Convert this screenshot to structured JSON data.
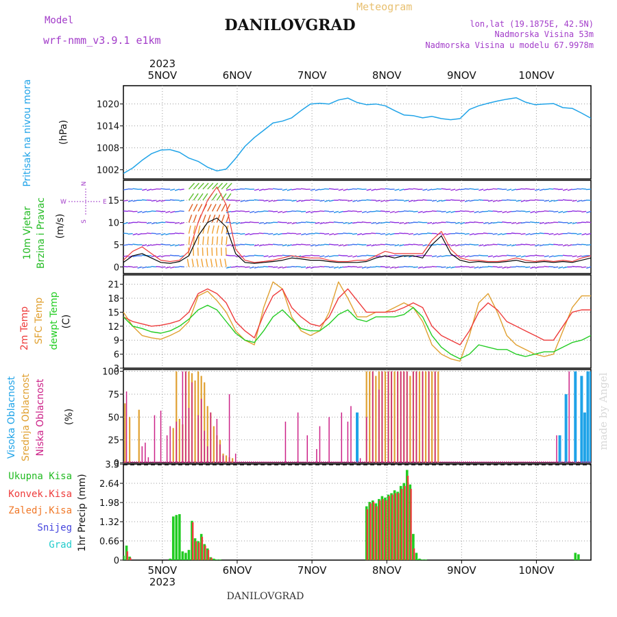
{
  "header": {
    "model_label": "Model",
    "model_name": "wrf-nmm_v3.9.1 e1km",
    "station_title": "DANILOVGRAD",
    "meteogram_label": "Meteogram",
    "lonlat": "lon,lat (19.1875E, 42.5N)",
    "elevation": "Nadmorska Visina 53m",
    "model_elevation": "Nadmorska Visina u modelu 67.9978m"
  },
  "footer": {
    "station": "DANILOVGRAD",
    "credit": "made by Angel"
  },
  "wind_compass": {
    "n": "N",
    "s": "S",
    "e": "E",
    "w": "W"
  },
  "colors": {
    "pressure": "#1fa3e8",
    "wind_speed_label": "#22bb22",
    "temp2m": "#ee3b3b",
    "sfc_temp": "#e0a030",
    "dewpoint": "#22cc22",
    "cloud_high": "#1fa3e8",
    "cloud_mid": "#e0a030",
    "cloud_low": "#cc2288",
    "precip_total": "#22cc22",
    "precip_conv": "#ee3b3b",
    "precip_frozen": "#f07828",
    "snow": "#4444dd",
    "hail": "#22cccc",
    "title_purple": "#a23cc9",
    "meteogram_gold": "#e8c070"
  },
  "chart_data": [
    {
      "type": "line",
      "panel": "pressure",
      "ylabel_lines": [
        "Pritisak na nivou mora",
        "(hPa)"
      ],
      "ylim": [
        999.5,
        1025.0
      ],
      "yticks": [
        "1002",
        "1008",
        "1014",
        "1020"
      ],
      "x_ticks": [
        "5NOV",
        "6NOV",
        "7NOV",
        "8NOV",
        "9NOV",
        "10NOV"
      ],
      "x_year": "2023",
      "x_hours": [
        0,
        3,
        6,
        9,
        12,
        15,
        18,
        21,
        24,
        27,
        30,
        33,
        36,
        39,
        42,
        45,
        48,
        51,
        54,
        57,
        60,
        63,
        66,
        69,
        72,
        75,
        78,
        81,
        84,
        87,
        90,
        93,
        96,
        99,
        102,
        105,
        108,
        111,
        114,
        117,
        120,
        123,
        126,
        129,
        132,
        135,
        138,
        141,
        144,
        147,
        150
      ],
      "series": [
        {
          "values": [
            1001.0,
            1002.5,
            1004.6,
            1006.4,
            1007.4,
            1007.5,
            1006.8,
            1005.2,
            1004.3,
            1002.7,
            1001.7,
            1002.2,
            1005.1,
            1008.4,
            1010.8,
            1012.8,
            1014.8,
            1015.3,
            1016.2,
            1018.2,
            1020.0,
            1020.2,
            1020.0,
            1021.1,
            1021.6,
            1020.4,
            1019.8,
            1020.0,
            1019.5,
            1018.2,
            1017.0,
            1016.8,
            1016.2,
            1016.6,
            1016.0,
            1015.7,
            1016.0,
            1018.5,
            1019.5,
            1020.2,
            1020.8,
            1021.3,
            1021.7,
            1020.5,
            1019.8,
            1020.0,
            1020.1,
            1019.0,
            1018.8,
            1017.5,
            1016.1
          ]
        }
      ]
    },
    {
      "type": "line",
      "panel": "wind",
      "ylabel_lines": [
        "10m Vjetar",
        "Brzina i Pravac",
        "(m/s)"
      ],
      "ylim": [
        -1.5,
        19.5
      ],
      "yticks": [
        "0",
        "5",
        "10",
        "15"
      ],
      "x_hours": [
        0,
        3,
        6,
        9,
        12,
        15,
        18,
        21,
        24,
        27,
        30,
        33,
        36,
        39,
        42,
        45,
        48,
        51,
        54,
        57,
        60,
        63,
        66,
        69,
        72,
        75,
        78,
        81,
        84,
        87,
        90,
        93,
        96,
        99,
        102,
        105,
        108,
        111,
        114,
        117,
        120,
        123,
        126,
        129,
        132,
        135,
        138,
        141,
        144,
        147,
        150
      ],
      "series": [
        {
          "name": "speed",
          "values": [
            1.0,
            2.5,
            3.0,
            2.0,
            1.0,
            0.8,
            1.2,
            2.5,
            7.0,
            10.0,
            11.0,
            9.0,
            3.0,
            1.0,
            0.8,
            1.0,
            1.2,
            1.5,
            2.0,
            1.8,
            1.5,
            1.5,
            1.2,
            1.0,
            1.0,
            1.0,
            1.2,
            2.0,
            2.5,
            2.0,
            2.5,
            2.5,
            2.0,
            5.0,
            7.0,
            3.0,
            1.5,
            1.0,
            1.2,
            1.0,
            1.0,
            1.2,
            1.5,
            1.0,
            1.0,
            1.2,
            1.0,
            1.2,
            1.0,
            1.5,
            2.0
          ]
        },
        {
          "name": "gust",
          "values": [
            1.5,
            3.5,
            4.5,
            3.0,
            1.5,
            1.2,
            1.5,
            3.5,
            10.0,
            15.0,
            18.0,
            14.0,
            4.0,
            1.5,
            1.0,
            1.2,
            1.5,
            2.0,
            2.5,
            2.2,
            2.0,
            2.0,
            1.5,
            1.2,
            1.2,
            1.5,
            1.5,
            2.5,
            3.5,
            3.0,
            3.0,
            3.0,
            3.0,
            6.0,
            8.0,
            4.0,
            2.0,
            1.5,
            1.5,
            1.2,
            1.2,
            1.5,
            2.0,
            1.5,
            1.2,
            1.5,
            1.2,
            1.5,
            1.2,
            2.0,
            2.5
          ]
        }
      ]
    },
    {
      "type": "line",
      "panel": "temperature",
      "ylabel_lines": [
        "2m Temp",
        "SFC Temp",
        "dewpt Temp",
        "(C)"
      ],
      "ylim": [
        3,
        23
      ],
      "yticks": [
        "3",
        "6",
        "9",
        "12",
        "15",
        "18",
        "21"
      ],
      "x_hours": [
        0,
        3,
        6,
        9,
        12,
        15,
        18,
        21,
        24,
        27,
        30,
        33,
        36,
        39,
        42,
        45,
        48,
        51,
        54,
        57,
        60,
        63,
        66,
        69,
        72,
        75,
        78,
        81,
        84,
        87,
        90,
        93,
        96,
        99,
        102,
        105,
        108,
        111,
        114,
        117,
        120,
        123,
        126,
        129,
        132,
        135,
        138,
        141,
        144,
        147,
        150
      ],
      "series": [
        {
          "name": "2m Temp",
          "values": [
            14.0,
            13.0,
            12.5,
            12.0,
            12.2,
            12.6,
            13.2,
            15.0,
            19.0,
            20.0,
            19.0,
            17.0,
            13.0,
            11.0,
            9.5,
            14.5,
            18.5,
            20.0,
            16.0,
            14.0,
            12.5,
            12.0,
            14.0,
            18.0,
            20.0,
            17.5,
            15.0,
            15.0,
            15.0,
            15.2,
            16.0,
            17.0,
            16.0,
            12.0,
            10.0,
            9.0,
            8.0,
            11.0,
            15.0,
            17.0,
            15.5,
            13.0,
            12.0,
            11.0,
            10.0,
            9.0,
            9.0,
            12.0,
            15.0,
            15.5,
            15.5
          ]
        },
        {
          "name": "SFC Temp",
          "values": [
            15.0,
            12.0,
            10.0,
            9.5,
            9.2,
            10.0,
            11.0,
            13.0,
            18.5,
            19.5,
            17.5,
            15.0,
            11.0,
            9.0,
            8.0,
            16.0,
            21.5,
            20.0,
            14.0,
            11.0,
            10.0,
            11.0,
            15.0,
            21.5,
            18.0,
            14.0,
            14.0,
            15.0,
            15.0,
            16.0,
            17.0,
            16.0,
            13.0,
            8.0,
            6.0,
            5.0,
            4.5,
            10.0,
            17.0,
            19.0,
            15.0,
            10.0,
            8.0,
            7.0,
            6.0,
            5.5,
            6.0,
            11.0,
            16.0,
            18.5,
            18.5
          ]
        },
        {
          "name": "dewpt Temp",
          "values": [
            14.0,
            12.0,
            11.5,
            10.8,
            10.5,
            11.0,
            12.0,
            13.5,
            15.5,
            16.5,
            15.5,
            13.0,
            10.5,
            9.0,
            8.5,
            11.0,
            14.0,
            15.5,
            13.5,
            11.5,
            11.0,
            11.0,
            12.5,
            14.5,
            15.5,
            13.5,
            13.0,
            14.0,
            14.0,
            14.0,
            14.5,
            16.0,
            14.0,
            10.0,
            7.5,
            6.0,
            5.0,
            6.0,
            8.0,
            7.5,
            7.0,
            7.0,
            6.0,
            5.5,
            6.0,
            6.5,
            6.5,
            7.5,
            8.5,
            9.0,
            10.0
          ]
        }
      ]
    },
    {
      "type": "bar",
      "panel": "cloud",
      "ylabel_lines": [
        "Visoka Oblacnost",
        "Srednja Oblacnost",
        "Niska Oblacnost",
        "(%)"
      ],
      "ylim": [
        0,
        102
      ],
      "yticks": [
        "0",
        "25",
        "50",
        "75",
        "100"
      ],
      "series": [
        {
          "name": "Visoka Oblacnost",
          "hours": [
            75,
            140,
            142,
            145,
            147,
            148,
            149,
            150
          ],
          "values": [
            55,
            30,
            75,
            100,
            95,
            55,
            100,
            100
          ]
        },
        {
          "name": "Srednja Oblacnost",
          "hours": [
            0.5,
            2,
            5,
            16,
            17,
            18,
            19,
            20,
            21,
            22,
            23,
            24,
            25,
            26,
            27,
            28,
            29,
            30,
            31,
            32,
            33,
            34,
            35,
            78,
            79,
            80,
            81,
            82,
            83,
            84,
            85,
            86,
            87,
            88,
            89,
            90,
            91,
            92,
            93,
            94,
            95,
            96,
            97,
            98,
            99,
            100,
            101
          ],
          "values": [
            65,
            50,
            58,
            38,
            100,
            48,
            42,
            100,
            100,
            98,
            90,
            100,
            95,
            88,
            62,
            55,
            40,
            30,
            25,
            10,
            8,
            6,
            5,
            100,
            100,
            100,
            95,
            100,
            100,
            100,
            100,
            100,
            100,
            100,
            100,
            100,
            100,
            95,
            100,
            100,
            100,
            100,
            100,
            100,
            100,
            100,
            100
          ]
        },
        {
          "name": "Niska Oblacnost",
          "hours": [
            1,
            6,
            7,
            8,
            10,
            12,
            14,
            15,
            17,
            19,
            20,
            21,
            22,
            24,
            25,
            26,
            27,
            28,
            30,
            31,
            32,
            34,
            36,
            52,
            56,
            59,
            62,
            63,
            66,
            70,
            72,
            73,
            76,
            78,
            80,
            82,
            83,
            85,
            86,
            88,
            89,
            90,
            91,
            93,
            94,
            96,
            98,
            100,
            139,
            143
          ],
          "values": [
            78,
            18,
            22,
            6,
            52,
            57,
            30,
            40,
            45,
            100,
            100,
            60,
            88,
            52,
            70,
            35,
            18,
            55,
            48,
            20,
            8,
            75,
            10,
            45,
            55,
            30,
            15,
            40,
            50,
            55,
            45,
            62,
            5,
            50,
            100,
            80,
            100,
            100,
            100,
            100,
            100,
            100,
            100,
            100,
            100,
            100,
            100,
            100,
            30,
            100
          ]
        }
      ]
    },
    {
      "type": "bar",
      "panel": "precip",
      "ylabel_lines": [
        "1hr Precip (mm)"
      ],
      "legend": [
        "Ukupna Kisa",
        "Konvek.Kisa",
        "Zaledj.Kisa",
        "Snijeg",
        "Grad"
      ],
      "ylim": [
        0,
        3.3
      ],
      "yticks": [
        "0",
        "0.66",
        "1.32",
        "1.98",
        "2.64",
        "3.3"
      ],
      "series": [
        {
          "name": "Ukupna Kisa",
          "hours": [
            0,
            1,
            2,
            15,
            16,
            17,
            18,
            19,
            20,
            21,
            22,
            23,
            24,
            25,
            26,
            27,
            28,
            29,
            30,
            31,
            78,
            79,
            80,
            81,
            82,
            83,
            84,
            85,
            86,
            87,
            88,
            89,
            90,
            91,
            92,
            93,
            94,
            95,
            96,
            97,
            145,
            146
          ],
          "values": [
            0.15,
            0.5,
            0.12,
            0.05,
            1.5,
            1.55,
            1.58,
            0.3,
            0.25,
            0.35,
            1.35,
            0.75,
            0.65,
            0.9,
            0.55,
            0.4,
            0.1,
            0.05,
            0.02,
            0.02,
            1.85,
            2.0,
            2.05,
            1.95,
            2.1,
            2.2,
            2.15,
            2.25,
            2.3,
            2.4,
            2.35,
            2.55,
            2.65,
            3.1,
            2.6,
            0.9,
            0.25,
            0.05,
            0.02,
            0.02,
            0.25,
            0.2
          ]
        },
        {
          "name": "Konvek.Kisa",
          "hours": [
            1,
            2,
            22,
            23,
            24,
            25,
            26,
            27,
            28,
            78,
            79,
            80,
            81,
            82,
            83,
            84,
            85,
            86,
            87,
            88,
            89,
            90,
            91,
            92,
            93
          ],
          "values": [
            0.3,
            0.08,
            1.3,
            0.65,
            0.6,
            0.8,
            0.5,
            0.35,
            0.08,
            1.75,
            1.95,
            2.0,
            1.85,
            2.05,
            2.1,
            2.05,
            2.2,
            2.25,
            2.3,
            2.3,
            2.45,
            2.55,
            2.9,
            2.45,
            0.4
          ]
        }
      ]
    }
  ]
}
